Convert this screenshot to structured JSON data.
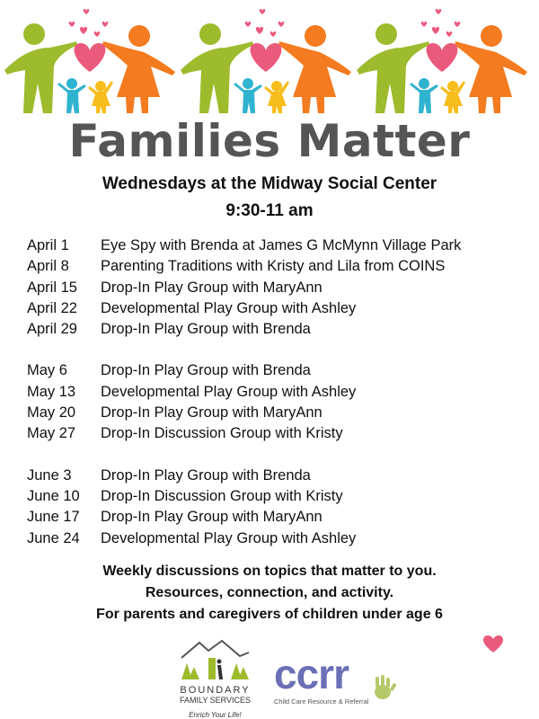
{
  "header": {
    "title": "Families Matter",
    "subtitle_line1": "Wednesdays at the Midway Social Center",
    "subtitle_line2": "9:30-11 am"
  },
  "schedule": [
    {
      "date": "April 1",
      "event": "Eye Spy with Brenda at James G McMynn Village Park"
    },
    {
      "date": "April 8",
      "event": "Parenting Traditions with Kristy and Lila from COINS"
    },
    {
      "date": "April 15",
      "event": "Drop-In Play Group with MaryAnn"
    },
    {
      "date": "April 22",
      "event": "Developmental Play Group with Ashley"
    },
    {
      "date": "April 29",
      "event": "Drop-In Play Group with Brenda"
    },
    {
      "date": "May 6",
      "event": "Drop-In Play Group with Brenda"
    },
    {
      "date": "May 13",
      "event": "Developmental Play Group with Ashley"
    },
    {
      "date": "May 20",
      "event": "Drop-In Play Group with MaryAnn"
    },
    {
      "date": "May 27",
      "event": "Drop-In Discussion Group with Kristy"
    },
    {
      "date": "June 3",
      "event": "Drop-In Play Group with Brenda"
    },
    {
      "date": "June 10",
      "event": "Drop-In Discussion Group with Kristy"
    },
    {
      "date": "June 17",
      "event": "Drop-In Play Group with MaryAnn"
    },
    {
      "date": "June 24",
      "event": "Developmental Play Group with Ashley"
    }
  ],
  "footer": {
    "line1": "Weekly discussions on topics that matter to you.",
    "line2": "Resources, connection, and activity.",
    "line3": "For parents and caregivers of children under age 6"
  },
  "logos": {
    "boundary_name1": "BOUNDARY",
    "boundary_name2": "FAMILY SERVICES",
    "boundary_tagline": "Enrich Your Life!",
    "ccrr_name": "ccrr",
    "ccrr_full": "Child Care Resource & Referral"
  },
  "colors": {
    "green": "#9dbb2c",
    "orange": "#f47b20",
    "pink": "#ea5a7c",
    "blue": "#2fb3cf",
    "yellow": "#f7bd1c",
    "title_gray": "#555555",
    "ccrr_purple": "#6b6fb5"
  }
}
